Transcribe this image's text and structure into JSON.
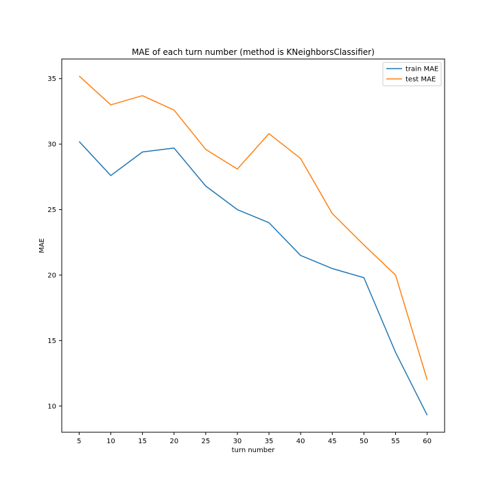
{
  "chart_data": {
    "type": "line",
    "title": "MAE of each turn number (method is KNeighborsClassifier)",
    "xlabel": "turn number",
    "ylabel": "MAE",
    "x": [
      5,
      10,
      15,
      20,
      25,
      30,
      35,
      40,
      45,
      50,
      55,
      60
    ],
    "xticks": [
      "5",
      "10",
      "15",
      "20",
      "25",
      "30",
      "35",
      "40",
      "45",
      "50",
      "55",
      "60"
    ],
    "xlim": [
      2.25,
      62.75
    ],
    "yticks": [
      "10",
      "15",
      "20",
      "25",
      "30",
      "35"
    ],
    "ylim": [
      8.0,
      36.5
    ],
    "grid": false,
    "legend_position": "top-right",
    "series": [
      {
        "name": "train MAE",
        "color": "#1f77b4",
        "values": [
          30.2,
          27.6,
          29.4,
          29.7,
          26.8,
          25.0,
          24.0,
          21.5,
          20.5,
          19.8,
          14.1,
          9.3
        ]
      },
      {
        "name": "test MAE",
        "color": "#ff7f0e",
        "values": [
          35.2,
          33.0,
          33.7,
          32.6,
          29.6,
          28.1,
          30.8,
          28.9,
          24.7,
          22.3,
          20.0,
          12.0
        ]
      }
    ]
  }
}
